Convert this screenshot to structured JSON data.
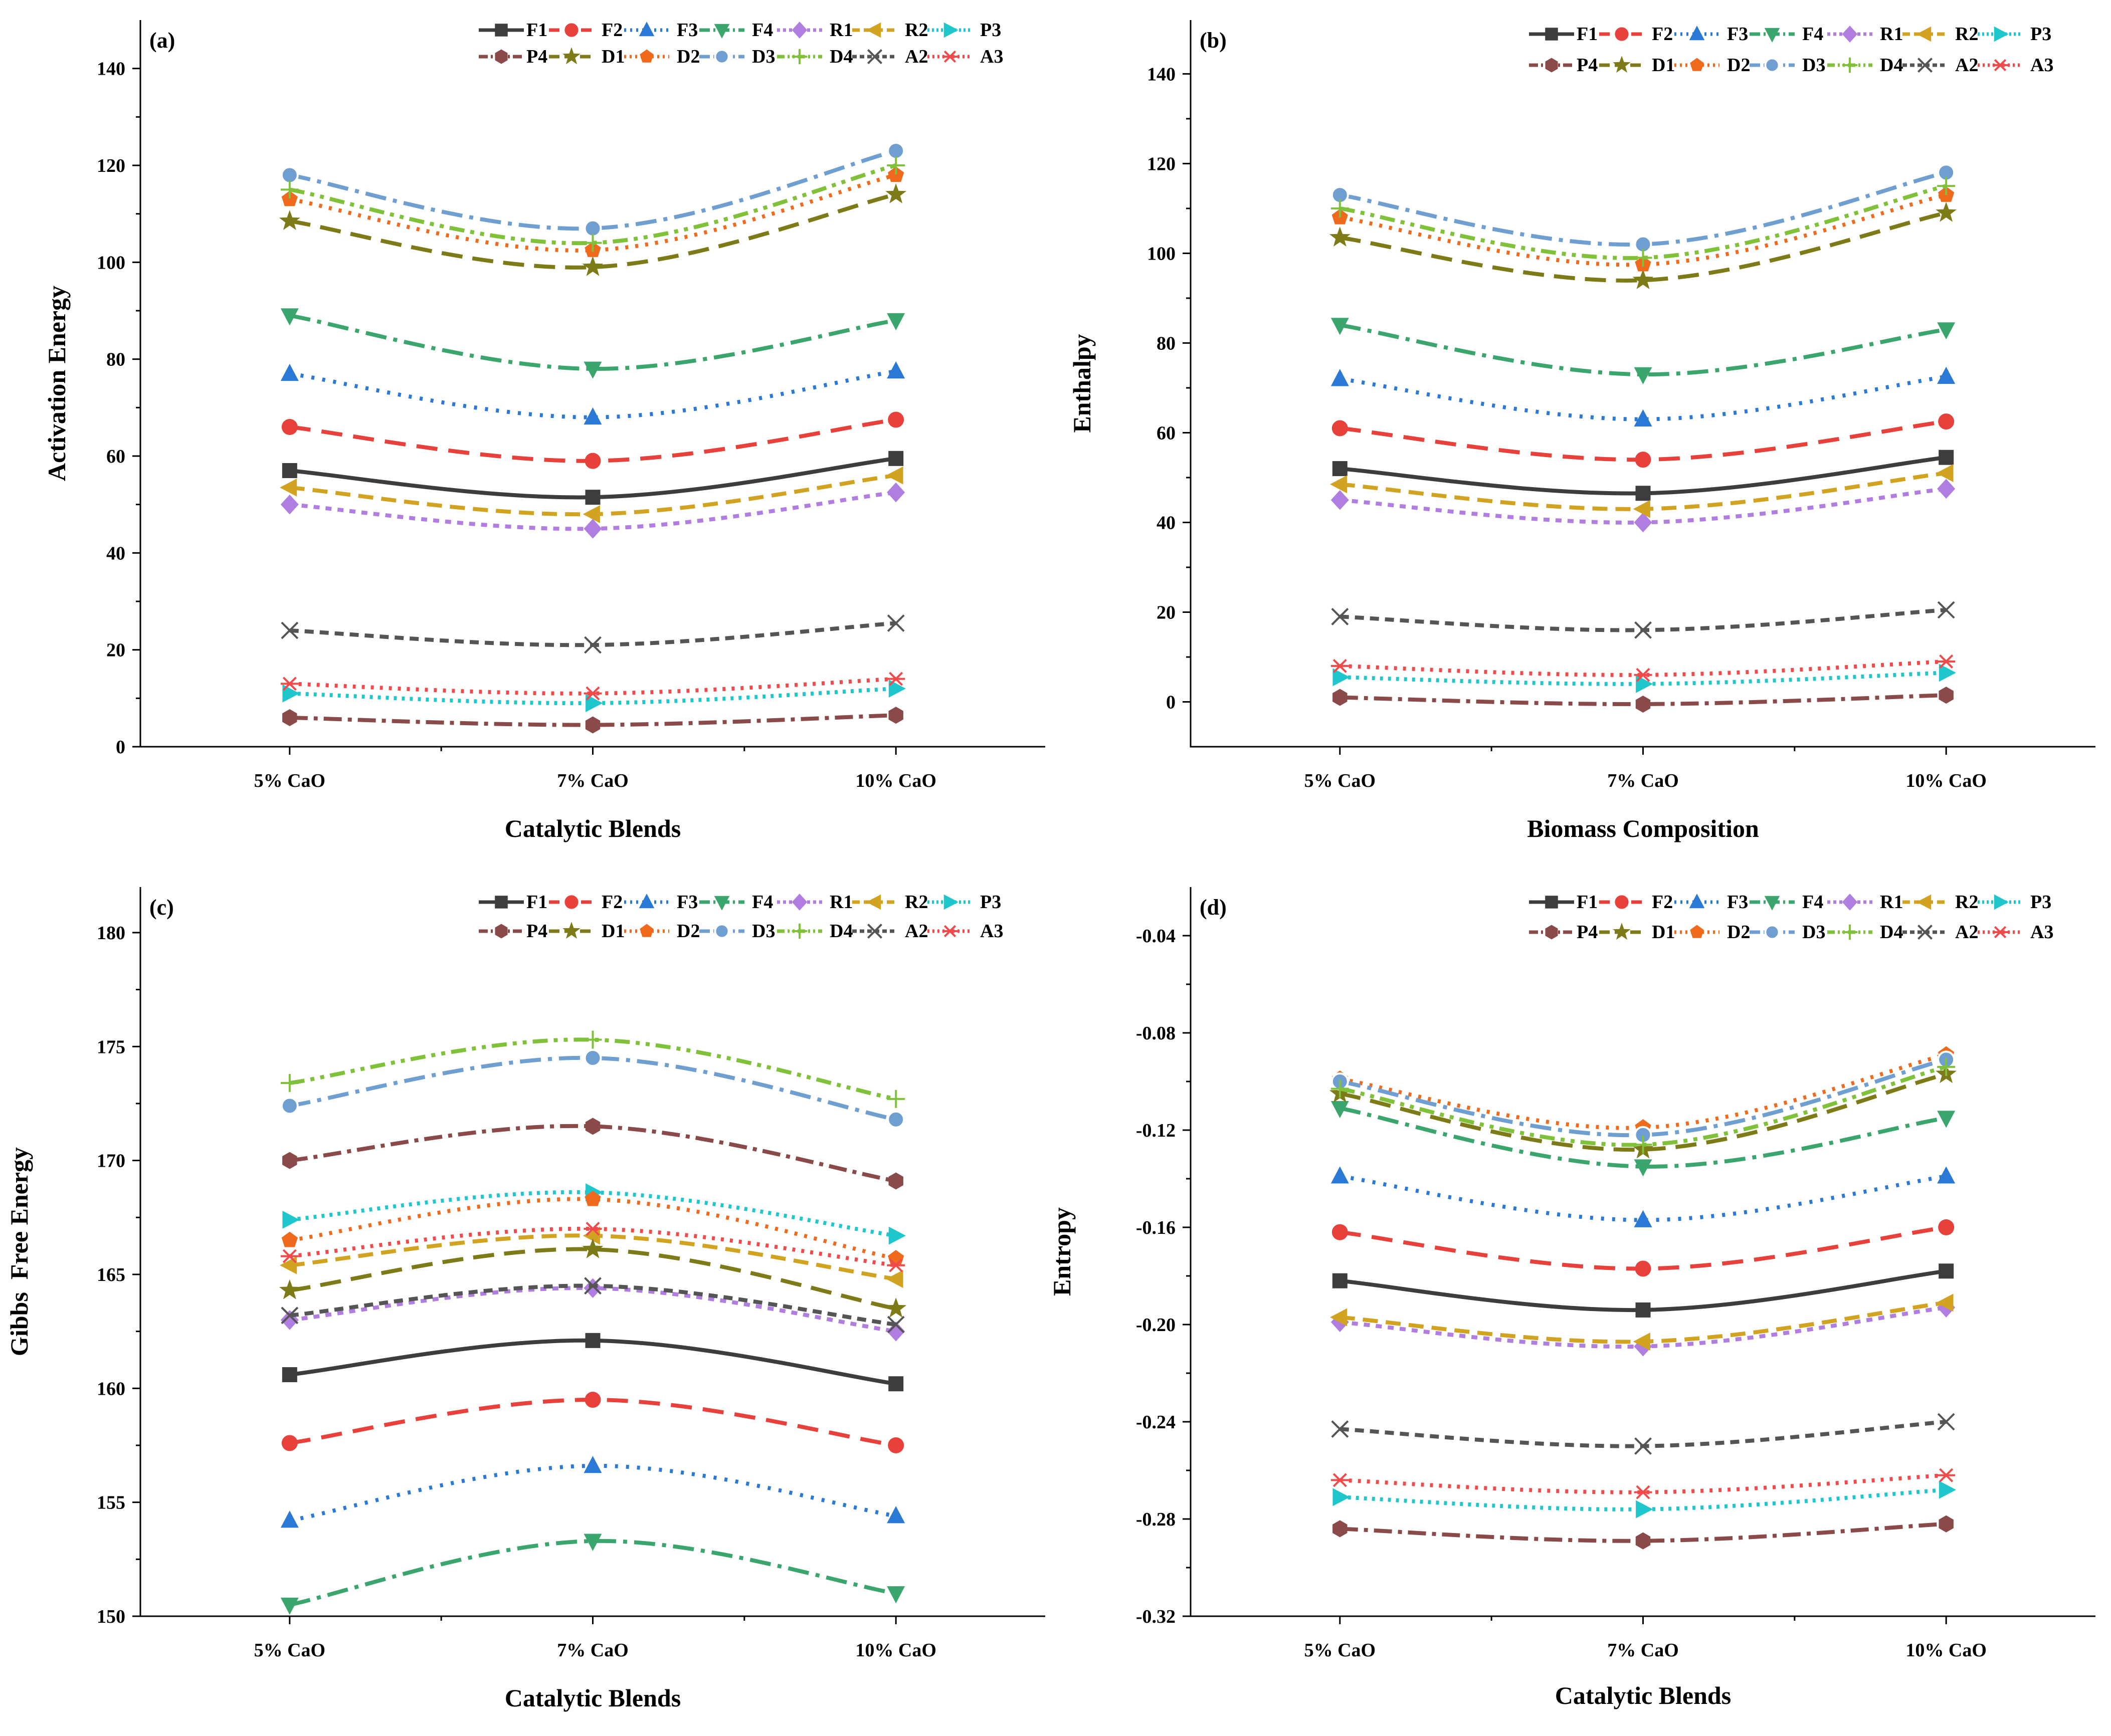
{
  "colors": {
    "F1": "#3d3d3d",
    "F2": "#e8403a",
    "F3": "#2a79d6",
    "F4": "#3aa66d",
    "R1": "#b07ee0",
    "R2": "#d1a320",
    "P3": "#1fc7cc",
    "P4": "#8a4a4a",
    "D1": "#7d7a18",
    "D2": "#f06a1e",
    "D3": "#6f9fd0",
    "D4": "#80c13a",
    "A2": "#555555",
    "A3": "#f04a4a"
  },
  "legend_order": [
    "F1",
    "F2",
    "F3",
    "F4",
    "R1",
    "R2",
    "P3",
    "P4",
    "D1",
    "D2",
    "D3",
    "D4",
    "A2",
    "A3"
  ],
  "chart_data": [
    {
      "id": "a",
      "panel_label": "(a)",
      "type": "line",
      "categories": [
        "5% CaO",
        "7% CaO",
        "10% CaO"
      ],
      "xlabel": "Catalytic Blends",
      "ylabel": "Activation Energy",
      "ylim": [
        0,
        150
      ],
      "yticks": [
        0,
        20,
        40,
        60,
        80,
        100,
        120,
        140
      ],
      "ytick_labels": [
        "0",
        "20",
        "40",
        "60",
        "80",
        "100",
        "120",
        "140"
      ],
      "series": [
        {
          "name": "F1",
          "values": [
            57,
            51.5,
            59.5
          ]
        },
        {
          "name": "F2",
          "values": [
            66,
            59,
            67.5
          ]
        },
        {
          "name": "F3",
          "values": [
            77,
            68,
            77.5
          ]
        },
        {
          "name": "F4",
          "values": [
            89,
            78,
            88
          ]
        },
        {
          "name": "R1",
          "values": [
            50,
            45,
            52.5
          ]
        },
        {
          "name": "R2",
          "values": [
            53.5,
            48,
            56
          ]
        },
        {
          "name": "P3",
          "values": [
            11,
            9,
            12
          ]
        },
        {
          "name": "P4",
          "values": [
            6,
            4.5,
            6.5
          ]
        },
        {
          "name": "D1",
          "values": [
            108.5,
            99,
            114
          ]
        },
        {
          "name": "D2",
          "values": [
            113,
            102.5,
            118
          ]
        },
        {
          "name": "D3",
          "values": [
            118,
            107,
            123
          ]
        },
        {
          "name": "D4",
          "values": [
            115,
            104,
            120
          ]
        },
        {
          "name": "A2",
          "values": [
            24,
            21,
            25.5
          ]
        },
        {
          "name": "A3",
          "values": [
            13,
            11,
            14
          ]
        }
      ]
    },
    {
      "id": "b",
      "panel_label": "(b)",
      "type": "line",
      "categories": [
        "5% CaO",
        "7% CaO",
        "10% CaO"
      ],
      "xlabel": "Biomass Composition",
      "ylabel": "Enthalpy",
      "ylim": [
        -10,
        152
      ],
      "yticks": [
        0,
        20,
        40,
        60,
        80,
        100,
        120,
        140
      ],
      "ytick_labels": [
        "0",
        "20",
        "40",
        "60",
        "80",
        "100",
        "120",
        "140"
      ],
      "series": [
        {
          "name": "F1",
          "values": [
            52,
            46.5,
            54.5
          ]
        },
        {
          "name": "F2",
          "values": [
            61,
            54,
            62.5
          ]
        },
        {
          "name": "F3",
          "values": [
            72,
            63,
            72.5
          ]
        },
        {
          "name": "F4",
          "values": [
            84,
            73,
            83
          ]
        },
        {
          "name": "R1",
          "values": [
            45,
            40,
            47.5
          ]
        },
        {
          "name": "R2",
          "values": [
            48.5,
            43,
            51
          ]
        },
        {
          "name": "P3",
          "values": [
            5.5,
            4,
            6.5
          ]
        },
        {
          "name": "P4",
          "values": [
            1,
            -0.5,
            1.5
          ]
        },
        {
          "name": "D1",
          "values": [
            103.5,
            94,
            109
          ]
        },
        {
          "name": "D2",
          "values": [
            108,
            97.5,
            113
          ]
        },
        {
          "name": "D3",
          "values": [
            113,
            102,
            118
          ]
        },
        {
          "name": "D4",
          "values": [
            110,
            99,
            115
          ]
        },
        {
          "name": "A2",
          "values": [
            19,
            16,
            20.5
          ]
        },
        {
          "name": "A3",
          "values": [
            8,
            6,
            9
          ]
        }
      ]
    },
    {
      "id": "c",
      "panel_label": "(c)",
      "type": "line",
      "categories": [
        "5% CaO",
        "7% CaO",
        "10% CaO"
      ],
      "xlabel": "Catalytic Blends",
      "ylabel": "Gibbs  Free Energy",
      "ylim": [
        150,
        182
      ],
      "yticks": [
        150,
        155,
        160,
        165,
        170,
        175,
        180
      ],
      "ytick_labels": [
        "150",
        "155",
        "160",
        "165",
        "170",
        "175",
        "180"
      ],
      "series": [
        {
          "name": "F1",
          "values": [
            160.6,
            162.1,
            160.2
          ]
        },
        {
          "name": "F2",
          "values": [
            157.6,
            159.5,
            157.5
          ]
        },
        {
          "name": "F3",
          "values": [
            154.2,
            156.6,
            154.4
          ]
        },
        {
          "name": "F4",
          "values": [
            150.5,
            153.3,
            151
          ]
        },
        {
          "name": "R1",
          "values": [
            163,
            164.4,
            162.5
          ]
        },
        {
          "name": "R2",
          "values": [
            165.4,
            166.7,
            164.8
          ]
        },
        {
          "name": "P3",
          "values": [
            167.4,
            168.6,
            166.7
          ]
        },
        {
          "name": "P4",
          "values": [
            170,
            171.5,
            169.1
          ]
        },
        {
          "name": "D1",
          "values": [
            164.3,
            166.1,
            163.5
          ]
        },
        {
          "name": "D2",
          "values": [
            166.5,
            168.3,
            165.7
          ]
        },
        {
          "name": "D3",
          "values": [
            172.4,
            174.5,
            171.8
          ]
        },
        {
          "name": "D4",
          "values": [
            173.4,
            175.3,
            172.7
          ]
        },
        {
          "name": "A2",
          "values": [
            163.2,
            164.5,
            162.8
          ]
        },
        {
          "name": "A3",
          "values": [
            165.8,
            167,
            165.4
          ]
        }
      ]
    },
    {
      "id": "d",
      "panel_label": "(d)",
      "type": "line",
      "categories": [
        "5% CaO",
        "7% CaO",
        "10% CaO"
      ],
      "xlabel": "Catalytic Blends",
      "ylabel": "Entropy",
      "ylim": [
        -0.32,
        -0.02
      ],
      "yticks": [
        -0.32,
        -0.28,
        -0.24,
        -0.2,
        -0.16,
        -0.12,
        -0.08,
        -0.04
      ],
      "ytick_labels": [
        "-0.32",
        "-0.28",
        "-0.24",
        "-0.20",
        "-0.16",
        "-0.12",
        "-0.08",
        "-0.04"
      ],
      "series": [
        {
          "name": "F1",
          "values": [
            -0.182,
            -0.194,
            -0.178
          ]
        },
        {
          "name": "F2",
          "values": [
            -0.162,
            -0.177,
            -0.16
          ]
        },
        {
          "name": "F3",
          "values": [
            -0.139,
            -0.157,
            -0.139
          ]
        },
        {
          "name": "F4",
          "values": [
            -0.111,
            -0.135,
            -0.115
          ]
        },
        {
          "name": "R1",
          "values": [
            -0.199,
            -0.209,
            -0.193
          ]
        },
        {
          "name": "R2",
          "values": [
            -0.197,
            -0.207,
            -0.191
          ]
        },
        {
          "name": "P3",
          "values": [
            -0.271,
            -0.276,
            -0.268
          ]
        },
        {
          "name": "P4",
          "values": [
            -0.284,
            -0.289,
            -0.282
          ]
        },
        {
          "name": "D1",
          "values": [
            -0.105,
            -0.128,
            -0.097
          ]
        },
        {
          "name": "D2",
          "values": [
            -0.099,
            -0.119,
            -0.089
          ]
        },
        {
          "name": "D3",
          "values": [
            -0.1,
            -0.122,
            -0.091
          ]
        },
        {
          "name": "D4",
          "values": [
            -0.103,
            -0.126,
            -0.094
          ]
        },
        {
          "name": "A2",
          "values": [
            -0.243,
            -0.25,
            -0.24
          ]
        },
        {
          "name": "A3",
          "values": [
            -0.264,
            -0.269,
            -0.262
          ]
        }
      ]
    }
  ]
}
